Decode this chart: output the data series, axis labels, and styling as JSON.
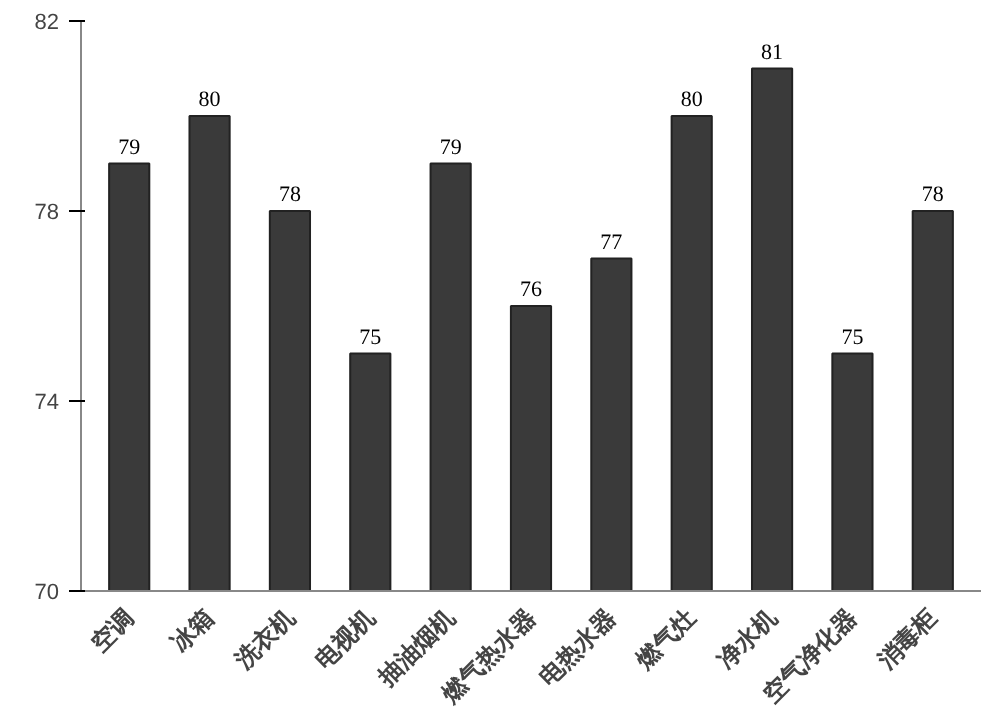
{
  "chart_data": {
    "type": "bar",
    "categories": [
      "空调",
      "冰箱",
      "洗衣机",
      "电视机",
      "抽油烟机",
      "燃气热水器",
      "电热水器",
      "燃气灶",
      "净水机",
      "空气净化器",
      "消毒柜"
    ],
    "values": [
      79,
      80,
      78,
      75,
      79,
      76,
      77,
      80,
      81,
      75,
      78
    ],
    "color": "#3a3a3a",
    "ylim": [
      70,
      82
    ],
    "yticks": [
      70,
      74,
      78,
      82
    ],
    "grid": false,
    "data_labels": true
  }
}
